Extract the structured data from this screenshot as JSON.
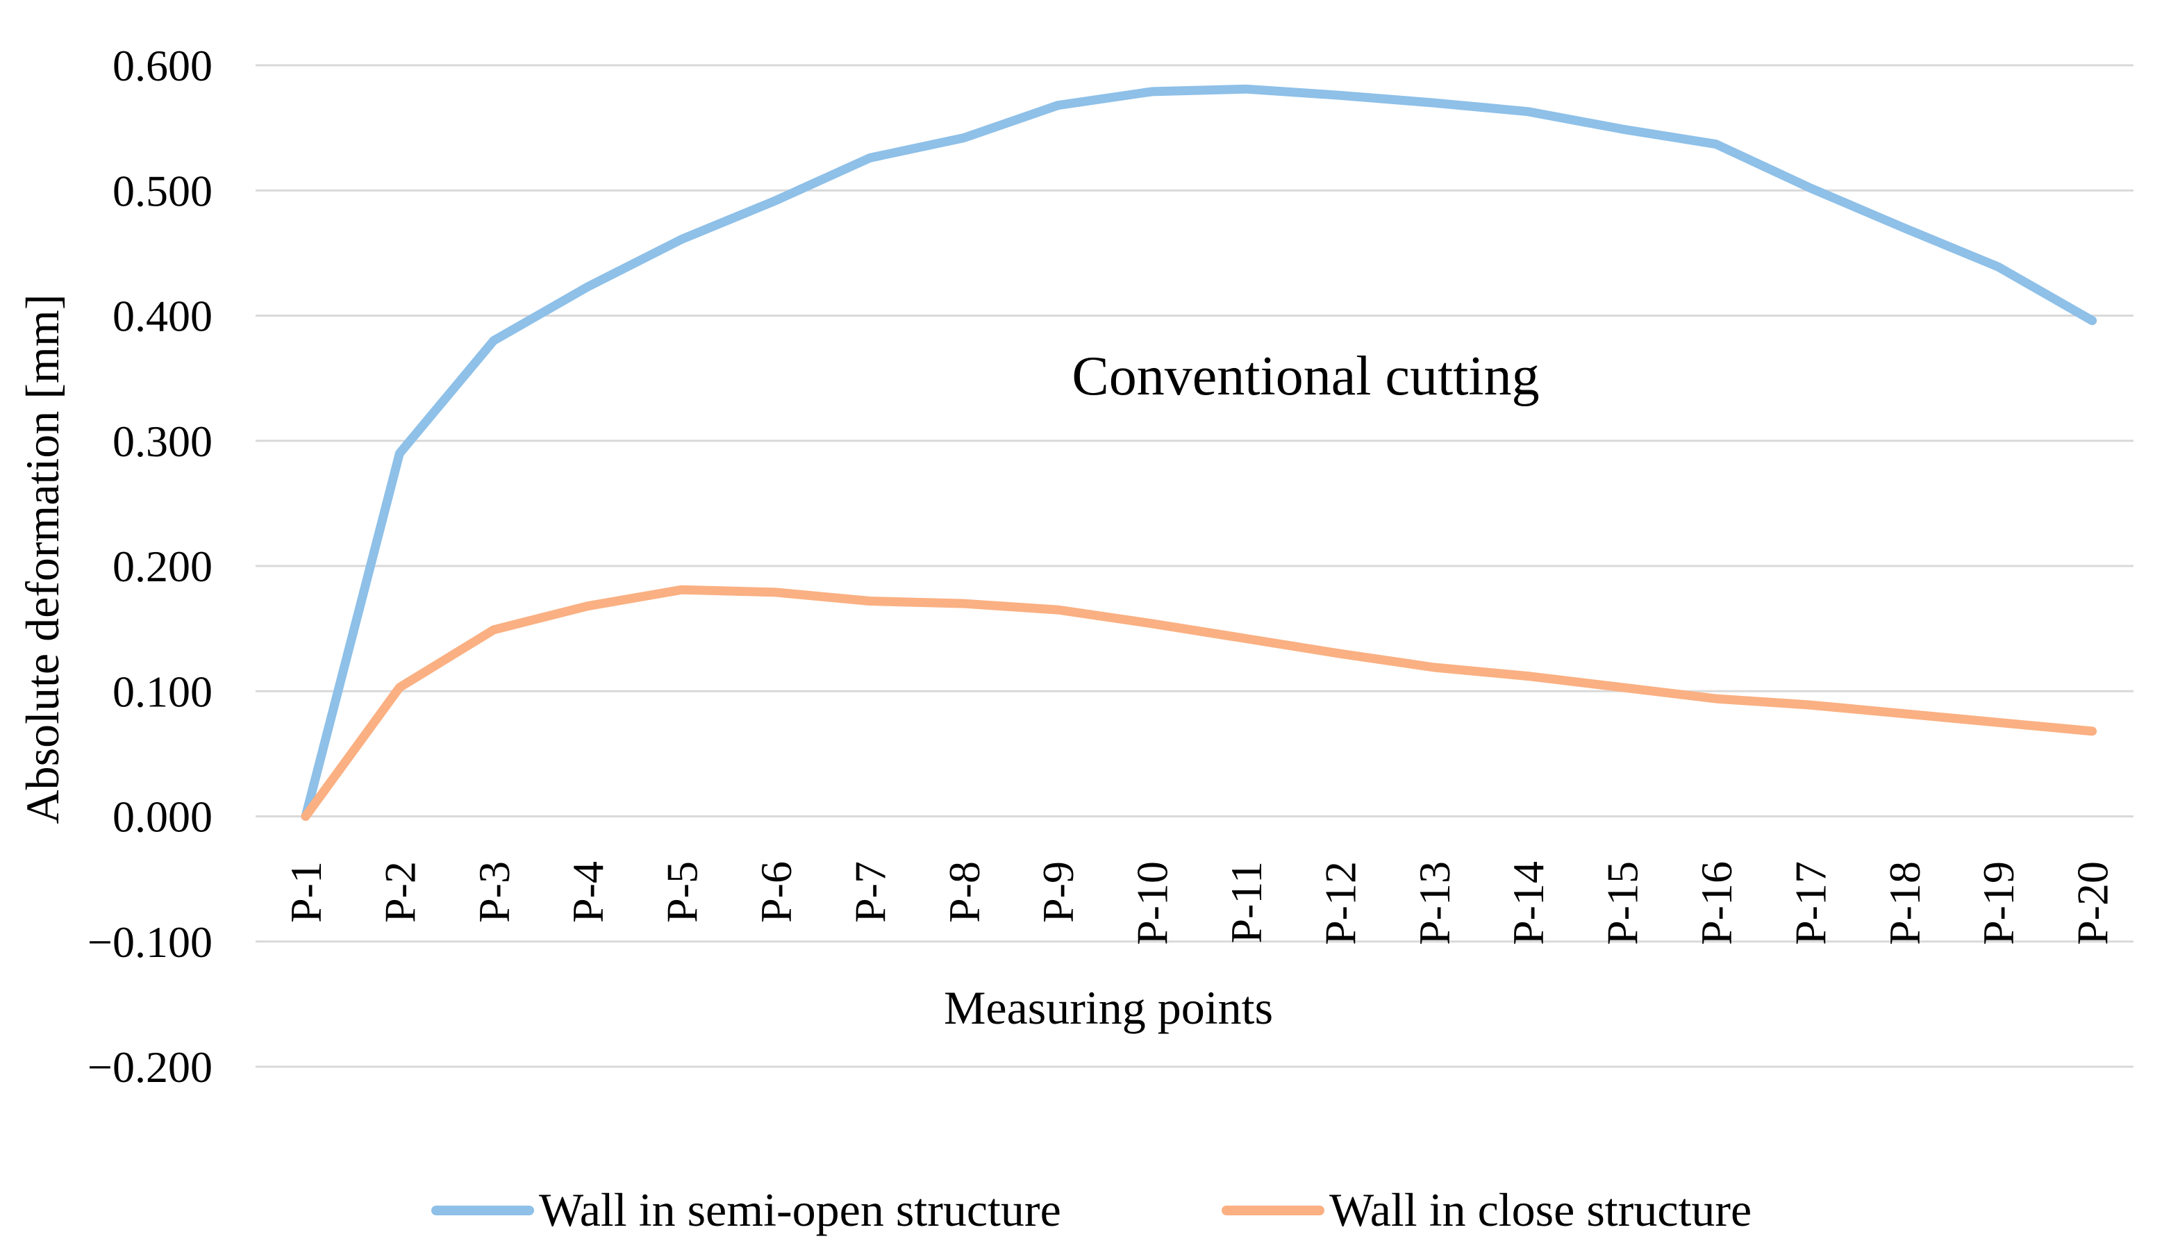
{
  "chart_data": {
    "type": "line",
    "title": "",
    "annotation": "Conventional cutting",
    "xlabel": "Measuring points",
    "ylabel": "Absolute deformation [mm]",
    "categories": [
      "P-1",
      "P-2",
      "P-3",
      "P-4",
      "P-5",
      "P-6",
      "P-7",
      "P-8",
      "P-9",
      "P-10",
      "P-11",
      "P-12",
      "P-13",
      "P-14",
      "P-15",
      "P-16",
      "P-17",
      "P-18",
      "P-19",
      "P-20"
    ],
    "ylim": [
      -0.2,
      0.6
    ],
    "yticks": [
      -0.2,
      -0.1,
      0.0,
      0.1,
      0.2,
      0.3,
      0.4,
      0.5,
      0.6
    ],
    "ytick_labels": [
      "−0.200",
      "−0.100",
      "0.000",
      "0.100",
      "0.200",
      "0.300",
      "0.400",
      "0.500",
      "0.600"
    ],
    "grid": true,
    "legend_position": "bottom",
    "series": [
      {
        "name": "Wall in semi-open structure",
        "color": "#8EC0E8",
        "values": [
          0.0,
          0.29,
          0.38,
          0.423,
          0.461,
          0.492,
          0.526,
          0.542,
          0.568,
          0.579,
          0.581,
          0.576,
          0.57,
          0.563,
          0.549,
          0.537,
          0.502,
          0.47,
          0.439,
          0.396
        ]
      },
      {
        "name": "Wall in close structure",
        "color": "#FAB082",
        "values": [
          0.0,
          0.103,
          0.149,
          0.168,
          0.181,
          0.179,
          0.172,
          0.17,
          0.165,
          0.154,
          0.142,
          0.13,
          0.119,
          0.112,
          0.103,
          0.094,
          0.089,
          0.082,
          0.075,
          0.068
        ]
      }
    ]
  }
}
